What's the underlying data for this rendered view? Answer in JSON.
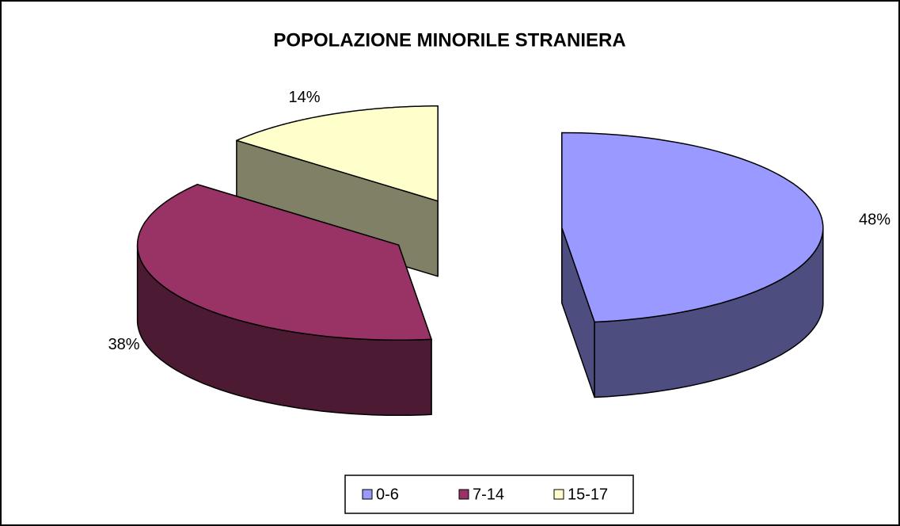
{
  "chart_data": {
    "type": "pie",
    "title": "POPOLAZIONE MINORILE STRANIERA",
    "categories": [
      "0-6",
      "7-14",
      "15-17"
    ],
    "values": [
      48,
      38,
      14
    ],
    "value_labels": [
      "48%",
      "38%",
      "14%"
    ],
    "colors": [
      "#9999ff",
      "#993366",
      "#ffffcc"
    ],
    "legend": "bottom"
  }
}
